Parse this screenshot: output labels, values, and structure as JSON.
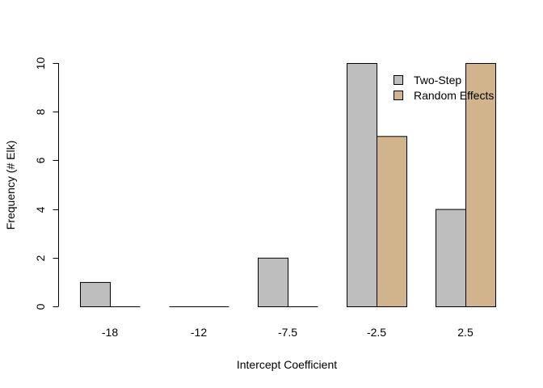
{
  "chart_data": {
    "type": "bar",
    "categories": [
      "-18",
      "-12",
      "-7.5",
      "-2.5",
      "2.5"
    ],
    "series": [
      {
        "name": "Two-Step",
        "values": [
          1,
          0,
          2,
          10,
          4
        ],
        "color": "#bebebe"
      },
      {
        "name": "Random Effects",
        "values": [
          0,
          0,
          0,
          7,
          10
        ],
        "color": "#d2b48c"
      }
    ],
    "title": "",
    "xlabel": "Intercept Coefficient",
    "ylabel": "Frequency (# Elk)",
    "ylim": [
      0,
      10
    ],
    "yticks": [
      0,
      2,
      4,
      6,
      8,
      10
    ],
    "grid": false,
    "legend_position": "top-right"
  }
}
